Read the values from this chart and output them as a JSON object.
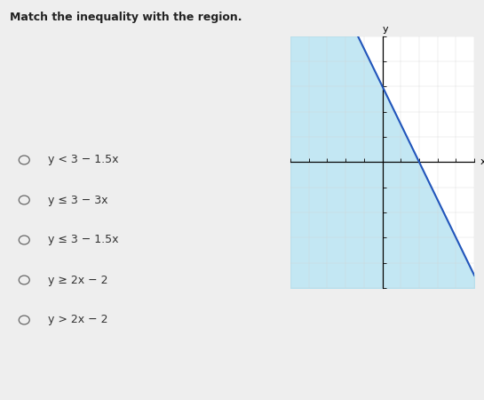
{
  "title": "Match the inequality with the region.",
  "line_slope": -1.5,
  "line_intercept": 3,
  "line_color": "#2255bb",
  "shade_color": "#aaddee",
  "shade_alpha": 0.7,
  "xlim": [
    -5,
    5
  ],
  "ylim": [
    -5,
    5
  ],
  "xticks": [
    -5,
    -4,
    -3,
    -2,
    -1,
    0,
    1,
    2,
    3,
    4,
    5
  ],
  "yticks": [
    -5,
    -4,
    -3,
    -2,
    -1,
    1,
    2,
    3,
    4,
    5
  ],
  "xlabel": "x",
  "ylabel": "y",
  "choices": [
    "y < 3 − 1.5x",
    "y ≤ 3 − 3x",
    "y ≤ 3 − 1.5x",
    "y ≥ 2x − 2",
    "y > 2x − 2"
  ],
  "bg_color": "#eeeeee",
  "graph_bg": "#ffffff",
  "title_fontsize": 9,
  "choice_fontsize": 9
}
